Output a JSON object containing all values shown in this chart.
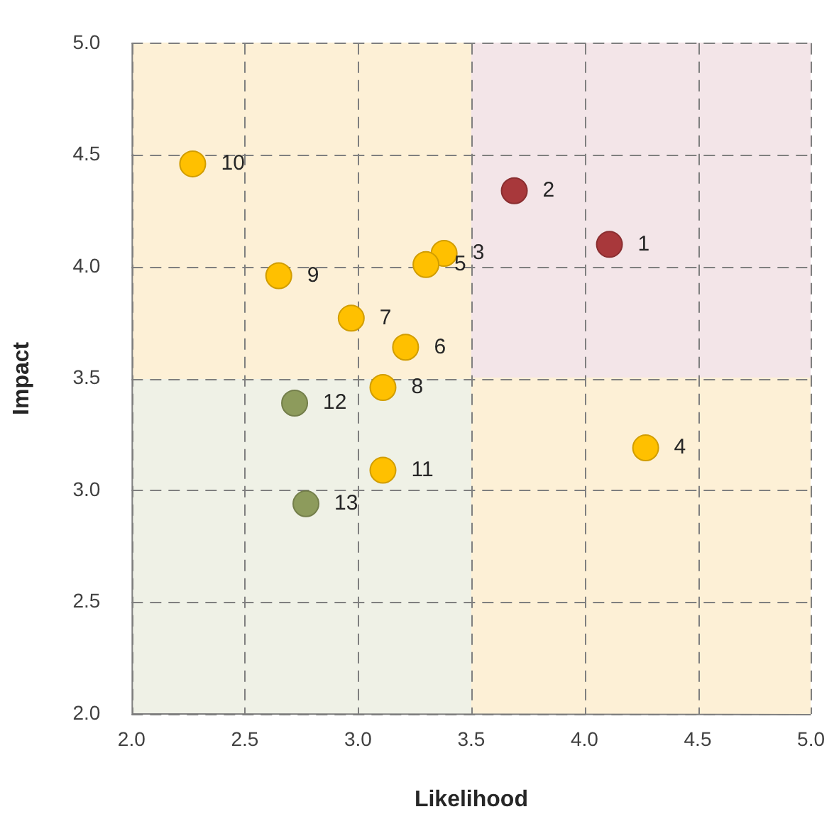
{
  "chart_data": {
    "type": "scatter",
    "xlabel": "Likelihood",
    "ylabel": "Impact",
    "xlim": [
      2,
      5
    ],
    "ylim": [
      2,
      5
    ],
    "xticks": [
      {
        "value": 2,
        "label": "2.0"
      },
      {
        "value": 2.5,
        "label": "2.5"
      },
      {
        "value": 3,
        "label": "3.0"
      },
      {
        "value": 3.5,
        "label": "3.5"
      },
      {
        "value": 4,
        "label": "4.0"
      },
      {
        "value": 4.5,
        "label": "4.5"
      },
      {
        "value": 5,
        "label": "5.0"
      }
    ],
    "yticks": [
      {
        "value": 2,
        "label": "2.0"
      },
      {
        "value": 2.5,
        "label": "2.5"
      },
      {
        "value": 3,
        "label": "3.0"
      },
      {
        "value": 3.5,
        "label": "3.5"
      },
      {
        "value": 4,
        "label": "4.0"
      },
      {
        "value": 4.5,
        "label": "4.5"
      },
      {
        "value": 5,
        "label": "5.0"
      }
    ],
    "grid": true,
    "legend": false,
    "marker": "circle",
    "series": [
      {
        "color": "#a8383b",
        "x": [
          4.11,
          3.69
        ],
        "values": [
          4.1,
          4.34
        ]
      },
      {
        "color": "#ffc000",
        "x": [
          3.38,
          4.27,
          3.3,
          3.21,
          2.97,
          3.11,
          2.65,
          2.27,
          3.11
        ],
        "values": [
          4.06,
          3.19,
          4.01,
          3.64,
          3.77,
          3.46,
          3.96,
          4.46,
          3.09
        ]
      },
      {
        "color": "#8d9b5c",
        "x": [
          2.72,
          2.77
        ],
        "values": [
          3.39,
          2.94
        ]
      }
    ],
    "annotations": [
      {
        "text": "1",
        "x": 4.11,
        "y": 4.1
      },
      {
        "text": "2",
        "x": 3.69,
        "y": 4.34
      },
      {
        "text": "3",
        "x": 3.38,
        "y": 4.06
      },
      {
        "text": "4",
        "x": 4.27,
        "y": 3.19
      },
      {
        "text": "5",
        "x": 3.3,
        "y": 4.01
      },
      {
        "text": "6",
        "x": 3.21,
        "y": 3.64
      },
      {
        "text": "7",
        "x": 2.97,
        "y": 3.77
      },
      {
        "text": "8",
        "x": 3.11,
        "y": 3.46
      },
      {
        "text": "9",
        "x": 2.65,
        "y": 3.96
      },
      {
        "text": "10",
        "x": 2.27,
        "y": 4.46
      },
      {
        "text": "11",
        "x": 3.11,
        "y": 3.09
      },
      {
        "text": "12",
        "x": 2.72,
        "y": 3.39
      },
      {
        "text": "13",
        "x": 2.77,
        "y": 2.94
      }
    ]
  }
}
